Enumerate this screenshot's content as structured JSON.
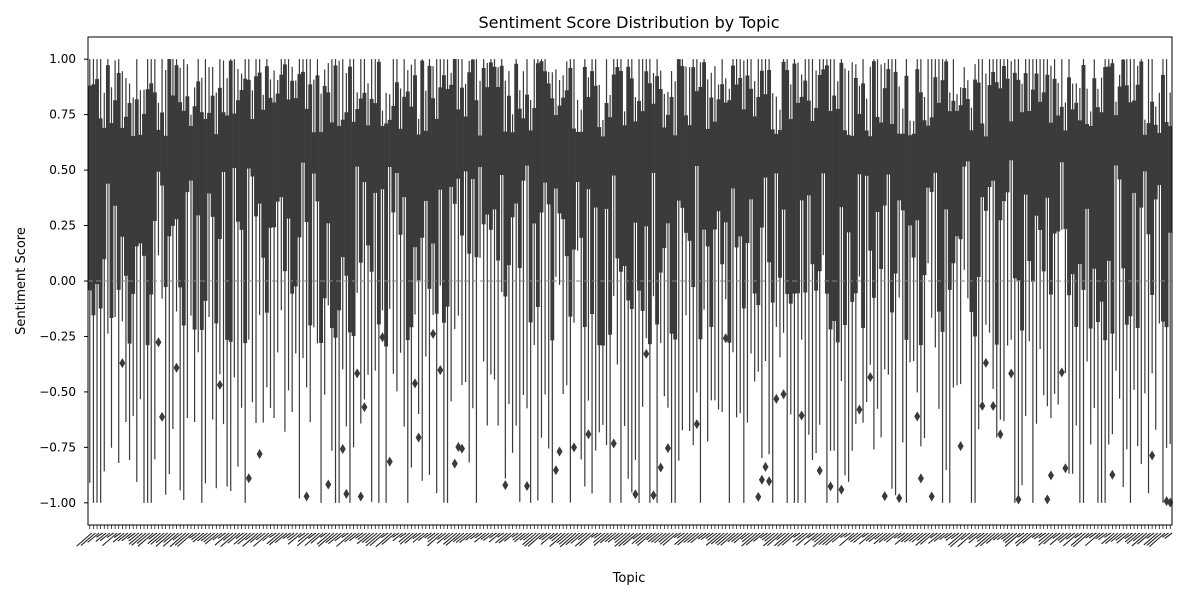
{
  "chart_data": {
    "type": "box",
    "title": "Sentiment Score Distribution by Topic",
    "xlabel": "Topic",
    "ylabel": "Sentiment Score",
    "ylim": [
      -1.1,
      1.1
    ],
    "y_ticks": [
      -1.0,
      -0.75,
      -0.5,
      -0.25,
      0.0,
      0.25,
      0.5,
      0.75,
      1.0
    ],
    "y_tick_labels": [
      "−1.00",
      "−0.75",
      "−0.50",
      "−0.25",
      "0.00",
      "0.25",
      "0.50",
      "0.75",
      "1.00"
    ],
    "reference_line_y": 0.0,
    "x_tick_labels_legible": false,
    "category_count": 300,
    "grid": false,
    "colors": {
      "box": "#3a3a3a",
      "reference_line": "#888888",
      "axis": "#000000"
    }
  }
}
